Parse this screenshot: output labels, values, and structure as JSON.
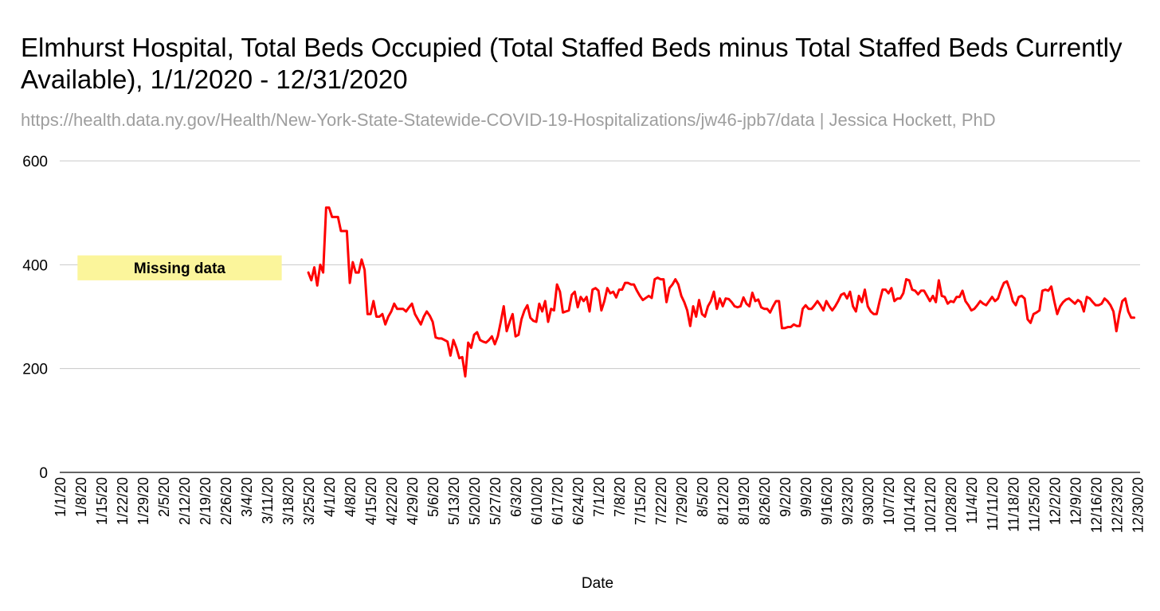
{
  "chart_data": {
    "type": "line",
    "title": "Elmhurst Hospital, Total Beds Occupied (Total Staffed Beds minus Total Staffed Beds Currently Available), 1/1/2020 - 12/31/2020",
    "subtitle": "https://health.data.ny.gov/Health/New-York-State-Statewide-COVID-19-Hospitalizations/jw46-jpb7/data | Jessica Hockett, PhD",
    "xlabel": "Date",
    "ylabel": "",
    "ylim": [
      0,
      600
    ],
    "yticks": [
      0,
      200,
      400,
      600
    ],
    "grid": true,
    "x_start": "1/1/2020",
    "x_end": "12/31/2020",
    "num_days": 366,
    "x_tick_labels": [
      "1/1/20",
      "1/8/20",
      "1/15/20",
      "1/22/20",
      "1/29/20",
      "2/5/20",
      "2/12/20",
      "2/19/20",
      "2/26/20",
      "3/4/20",
      "3/11/20",
      "3/18/20",
      "3/25/20",
      "4/1/20",
      "4/8/20",
      "4/15/20",
      "4/22/20",
      "4/29/20",
      "5/6/20",
      "5/13/20",
      "5/20/20",
      "5/27/20",
      "6/3/20",
      "6/10/20",
      "6/17/20",
      "6/24/20",
      "7/1/20",
      "7/8/20",
      "7/15/20",
      "7/22/20",
      "7/29/20",
      "8/5/20",
      "8/12/20",
      "8/19/20",
      "8/26/20",
      "9/2/20",
      "9/9/20",
      "9/16/20",
      "9/23/20",
      "9/30/20",
      "10/7/20",
      "10/14/20",
      "10/21/20",
      "10/28/20",
      "11/4/20",
      "11/11/20",
      "11/18/20",
      "11/25/20",
      "12/2/20",
      "12/9/20",
      "12/16/20",
      "12/23/20",
      "12/30/20"
    ],
    "annotation": {
      "text": "Missing data",
      "day_start": 6,
      "day_end": 75,
      "y_low": 370,
      "y_high": 418,
      "color": "#fbf59b"
    },
    "series": [
      {
        "name": "Total Beds Occupied",
        "color": "#ff0000",
        "start_day": 84,
        "values": [
          385,
          370,
          395,
          360,
          400,
          385,
          510,
          510,
          492,
          492,
          492,
          465,
          465,
          465,
          365,
          405,
          385,
          385,
          410,
          390,
          305,
          305,
          330,
          300,
          300,
          305,
          285,
          300,
          310,
          325,
          315,
          315,
          315,
          310,
          318,
          325,
          305,
          295,
          285,
          300,
          310,
          302,
          290,
          260,
          258,
          258,
          255,
          252,
          225,
          255,
          240,
          220,
          222,
          185,
          250,
          240,
          265,
          270,
          255,
          252,
          250,
          255,
          262,
          247,
          262,
          290,
          320,
          272,
          290,
          305,
          262,
          265,
          295,
          312,
          322,
          298,
          292,
          290,
          325,
          310,
          330,
          290,
          315,
          312,
          362,
          348,
          308,
          310,
          312,
          342,
          348,
          318,
          338,
          330,
          338,
          310,
          352,
          355,
          350,
          312,
          330,
          355,
          345,
          348,
          337,
          352,
          352,
          365,
          365,
          362,
          362,
          350,
          340,
          332,
          336,
          340,
          336,
          372,
          375,
          372,
          372,
          328,
          355,
          362,
          372,
          362,
          340,
          328,
          312,
          282,
          320,
          300,
          332,
          305,
          300,
          320,
          330,
          348,
          315,
          335,
          320,
          335,
          334,
          328,
          320,
          318,
          320,
          337,
          325,
          320,
          346,
          330,
          333,
          318,
          315,
          315,
          308,
          320,
          330,
          330,
          278,
          278,
          280,
          280,
          285,
          282,
          282,
          315,
          322,
          315,
          315,
          322,
          330,
          322,
          312,
          330,
          320,
          312,
          320,
          330,
          342,
          345,
          335,
          348,
          320,
          310,
          340,
          328,
          352,
          320,
          310,
          305,
          305,
          330,
          352,
          352,
          345,
          355,
          330,
          335,
          335,
          345,
          372,
          370,
          352,
          350,
          343,
          350,
          350,
          340,
          330,
          340,
          328,
          370,
          340,
          338,
          325,
          330,
          328,
          338,
          338,
          350,
          330,
          322,
          312,
          315,
          322,
          330,
          325,
          322,
          330,
          338,
          330,
          335,
          352,
          365,
          368,
          352,
          330,
          322,
          338,
          340,
          335,
          295,
          288,
          305,
          308,
          312,
          350,
          352,
          350,
          358,
          330,
          305,
          320,
          328,
          333,
          335,
          330,
          325,
          332,
          328,
          310,
          338,
          335,
          328,
          322,
          322,
          325,
          335,
          330,
          322,
          310,
          272,
          305,
          330,
          335,
          310,
          298,
          298
        ]
      }
    ]
  }
}
